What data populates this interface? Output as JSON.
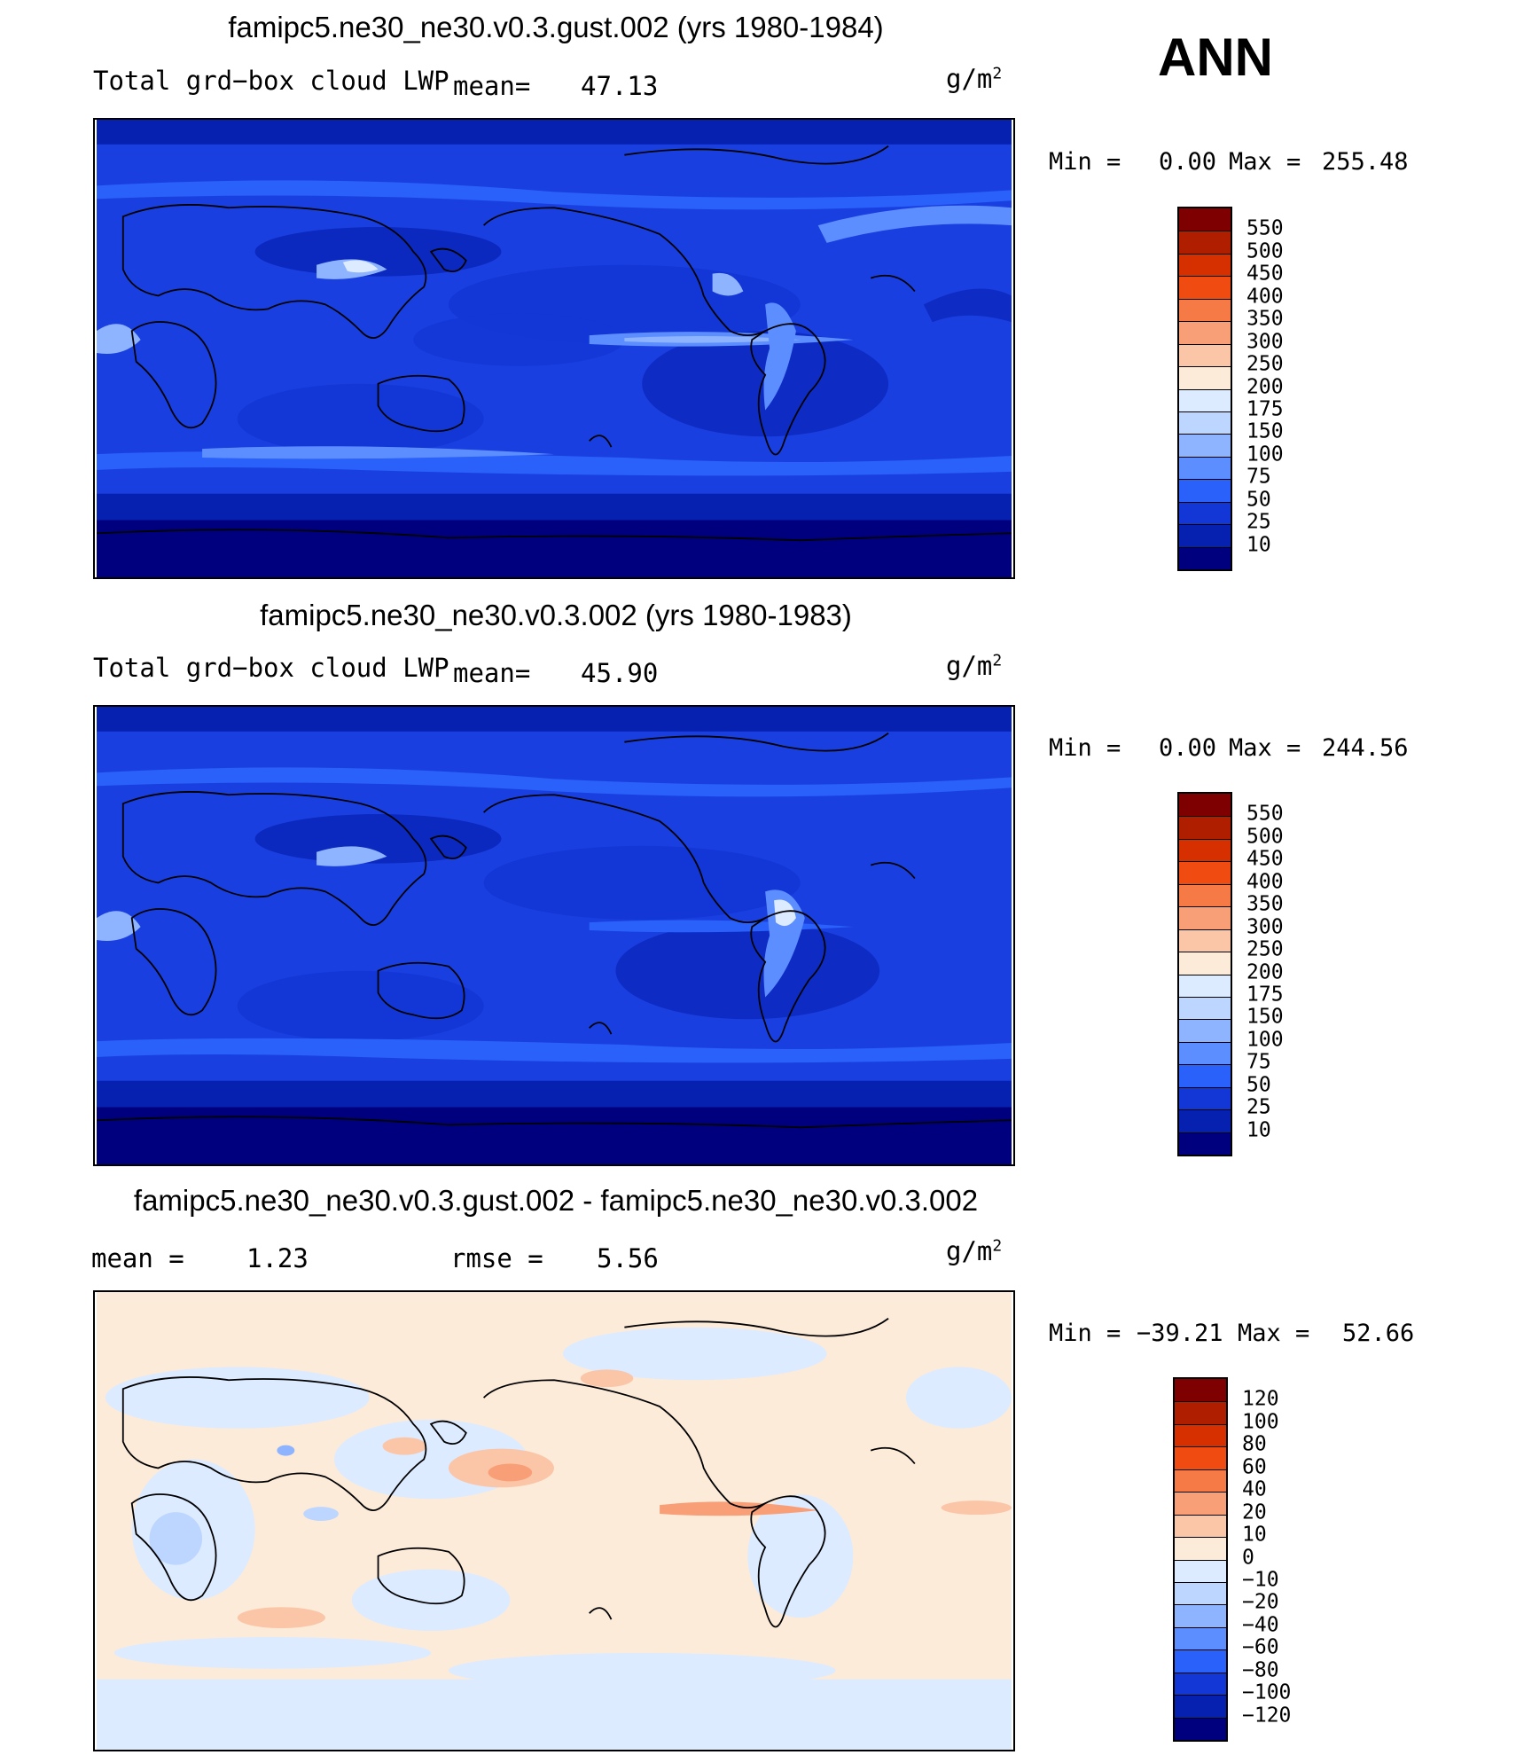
{
  "season": "ANN",
  "panels": [
    {
      "title": "famipc5.ne30_ne30.v0.3.gust.002 (yrs 1980-1984)",
      "left_label": "Total grd−box cloud LWP",
      "mean_label": "mean=",
      "mean_value": "47.13",
      "units_base": "g/m",
      "units_exp": "2",
      "min_text": "Min =",
      "min_value": "0.00",
      "max_text": "Max =",
      "max_value": "255.48",
      "levels": [
        "550",
        "500",
        "450",
        "400",
        "350",
        "300",
        "250",
        "200",
        "175",
        "150",
        "100",
        "75",
        "50",
        "25",
        "10"
      ],
      "colors": [
        "#7f0000",
        "#b01e00",
        "#d62f00",
        "#f04c12",
        "#f57a45",
        "#f99f78",
        "#fbc6a8",
        "#fdebd9",
        "#dcebff",
        "#bcd6ff",
        "#8fb4ff",
        "#5d8eff",
        "#2a61fa",
        "#1337d6",
        "#0620b0",
        "#00007f"
      ]
    },
    {
      "title": "famipc5.ne30_ne30.v0.3.002 (yrs 1980-1983)",
      "left_label": "Total grd−box cloud LWP",
      "mean_label": "mean=",
      "mean_value": "45.90",
      "units_base": "g/m",
      "units_exp": "2",
      "min_text": "Min =",
      "min_value": "0.00",
      "max_text": "Max =",
      "max_value": "244.56",
      "levels": [
        "550",
        "500",
        "450",
        "400",
        "350",
        "300",
        "250",
        "200",
        "175",
        "150",
        "100",
        "75",
        "50",
        "25",
        "10"
      ],
      "colors": [
        "#7f0000",
        "#b01e00",
        "#d62f00",
        "#f04c12",
        "#f57a45",
        "#f99f78",
        "#fbc6a8",
        "#fdebd9",
        "#dcebff",
        "#bcd6ff",
        "#8fb4ff",
        "#5d8eff",
        "#2a61fa",
        "#1337d6",
        "#0620b0",
        "#00007f"
      ]
    },
    {
      "title": "famipc5.ne30_ne30.v0.3.gust.002 - famipc5.ne30_ne30.v0.3.002",
      "mean_label": "mean =",
      "mean_value": "1.23",
      "rmse_label": "rmse =",
      "rmse_value": "5.56",
      "units_base": "g/m",
      "units_exp": "2",
      "min_text": "Min =",
      "min_value": "−39.21",
      "max_text": "Max =",
      "max_value": "52.66",
      "levels": [
        "120",
        "100",
        "80",
        "60",
        "40",
        "20",
        "10",
        "0",
        "−10",
        "−20",
        "−40",
        "−60",
        "−80",
        "−100",
        "−120"
      ],
      "colors": [
        "#7f0000",
        "#b01e00",
        "#d62f00",
        "#f04c12",
        "#f57a45",
        "#f99f78",
        "#fbc6a8",
        "#fdebd9",
        "#dcebff",
        "#bcd6ff",
        "#8fb4ff",
        "#5d8eff",
        "#2a61fa",
        "#1337d6",
        "#0620b0",
        "#00007f"
      ]
    }
  ],
  "palette": {
    "ocean_dark": "#00007f",
    "field_base": "#1a3fe0",
    "field_mid": "#2a61fa",
    "field_light": "#8fb4ff",
    "field_highlight": "#dcebff",
    "diff_pos": "#fdebd9",
    "diff_pos_strong": "#f99f78",
    "diff_neg": "#dcebff",
    "diff_neg_strong": "#8fb4ff",
    "coastline": "#000000"
  }
}
